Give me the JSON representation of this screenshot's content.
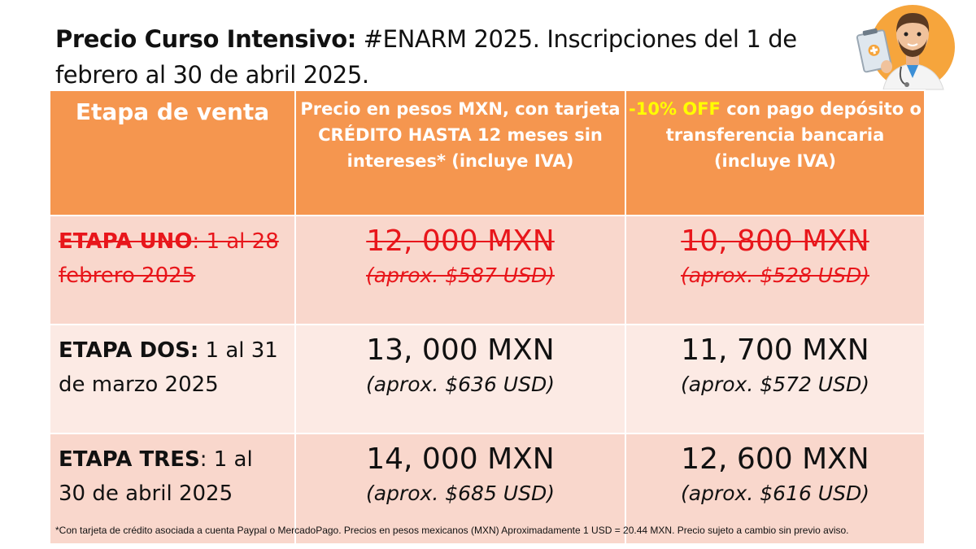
{
  "title": {
    "bold": "Precio Curso Intensivo:",
    "rest": " #ENARM 2025. Inscripciones del 1 de febrero al 30 de abril 2025."
  },
  "avatar": "doctor-avatar-icon",
  "table": {
    "headers": {
      "col1": "Etapa de venta",
      "col2": "Precio en pesos MXN, con tarjeta CRÉDITO HASTA 12 meses sin intereses* (incluye IVA)",
      "col3_highlight": "-10% OFF",
      "col3_rest": " con pago depósito o transferencia bancaria (incluye IVA)"
    },
    "rows": [
      {
        "stage_bold": "ETAPA UNO",
        "stage_rest": ": 1 al 28 febrero 2025",
        "credit_mxn": "12, 000 MXN",
        "credit_usd": "(aprox. $587 USD)",
        "deposit_mxn": "10, 800 MXN",
        "deposit_usd": "(aprox. $528 USD)"
      },
      {
        "stage_bold": "ETAPA DOS:",
        "stage_rest": " 1 al 31 de marzo 2025",
        "credit_mxn": "13, 000 MXN",
        "credit_usd": "(aprox. $636 USD)",
        "deposit_mxn": "11, 700 MXN",
        "deposit_usd": "(aprox. $572 USD)"
      },
      {
        "stage_bold": "ETAPA TRES",
        "stage_rest": ": 1 al 30 de abril 2025",
        "credit_mxn": "14, 000 MXN",
        "credit_usd": "(aprox. $685 USD)",
        "deposit_mxn": "12, 600 MXN",
        "deposit_usd": "(aprox. $616 USD)"
      }
    ]
  },
  "footnote": "*Con tarjeta de crédito asociada a cuenta Paypal o MercadoPago. Precios en pesos mexicanos (MXN) Aproximadamente 1 USD = 20.44 MXN. Precio sujeto a cambio sin previo aviso.",
  "colors": {
    "header_bg": "#f5964f",
    "row_dark": "#f9d7cc",
    "row_light": "#fceae4",
    "strike_red": "#e8161b",
    "highlight_yellow": "#ffff00"
  }
}
